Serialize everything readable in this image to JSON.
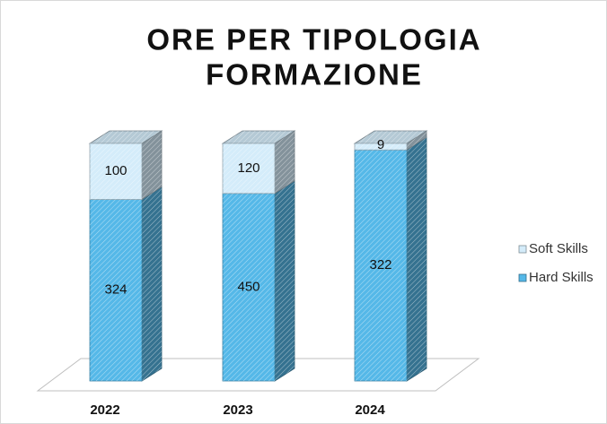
{
  "chart_data": {
    "type": "bar",
    "stacked": "percent",
    "title": [
      "ORE PER TIPOLOGIA",
      "FORMAZIONE"
    ],
    "categories": [
      "2022",
      "2023",
      "2024"
    ],
    "series": [
      {
        "name": "Hard Skills",
        "color": "#55b8e8",
        "values": [
          324,
          450,
          322
        ]
      },
      {
        "name": "Soft Skills",
        "color": "#d4ecfa",
        "values": [
          100,
          120,
          9
        ]
      }
    ],
    "legend": "right"
  }
}
